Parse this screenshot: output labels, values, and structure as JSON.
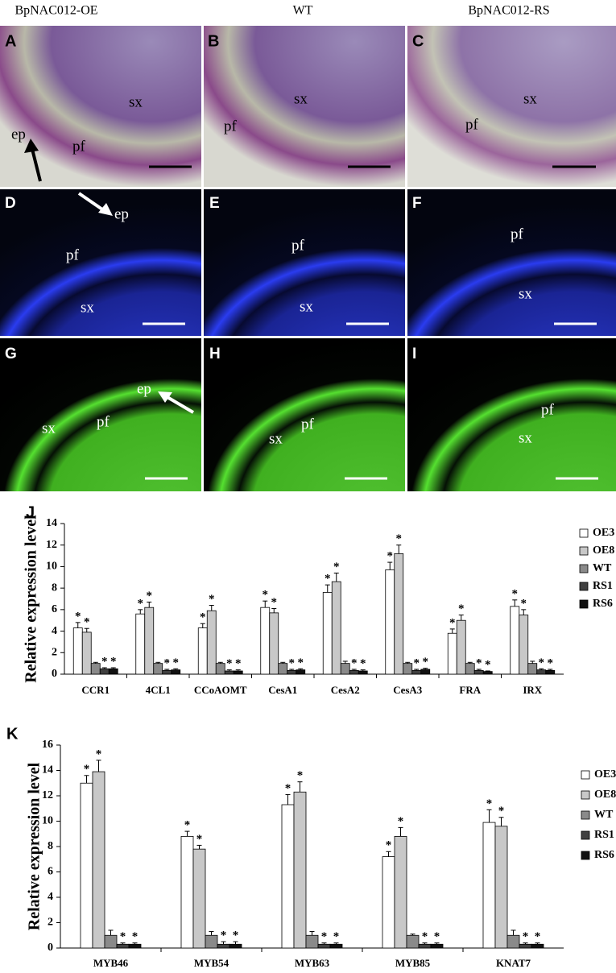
{
  "micrographs": {
    "column_titles": [
      "BpNAC012-OE",
      "WT",
      "BpNAC012-RS"
    ],
    "panels": [
      {
        "letter": "A",
        "labels": [
          "ep",
          "pf",
          "sx"
        ]
      },
      {
        "letter": "B",
        "labels": [
          "sx",
          "pf"
        ]
      },
      {
        "letter": "C",
        "labels": [
          "sx",
          "pf"
        ]
      },
      {
        "letter": "D",
        "labels": [
          "ep",
          "pf",
          "sx"
        ]
      },
      {
        "letter": "E",
        "labels": [
          "pf",
          "sx"
        ]
      },
      {
        "letter": "F",
        "labels": [
          "pf",
          "sx"
        ]
      },
      {
        "letter": "G",
        "labels": [
          "ep",
          "pf",
          "sx"
        ]
      },
      {
        "letter": "H",
        "labels": [
          "pf",
          "sx"
        ]
      },
      {
        "letter": "I",
        "labels": [
          "pf",
          "sx"
        ]
      }
    ]
  },
  "chart_data": [
    {
      "type": "bar",
      "panel": "J",
      "ylabel": "Relative expression level",
      "categories": [
        "CCR1",
        "4CL1",
        "CCoAOMT",
        "CesA1",
        "CesA2",
        "CesA3",
        "FRA",
        "IRX"
      ],
      "series": [
        {
          "name": "OE3",
          "color": "#ffffff",
          "values": [
            4.3,
            5.6,
            4.3,
            6.2,
            7.6,
            9.7,
            3.8,
            6.3
          ],
          "errors": [
            0.5,
            0.4,
            0.4,
            0.6,
            0.7,
            0.7,
            0.4,
            0.6
          ],
          "labels": [
            "*",
            "*",
            "*",
            "*",
            "*",
            "*",
            "*",
            "*"
          ]
        },
        {
          "name": "OE8",
          "color": "#c8c8c8",
          "values": [
            3.9,
            6.2,
            5.9,
            5.7,
            8.6,
            11.2,
            5.0,
            5.5
          ],
          "errors": [
            0.35,
            0.5,
            0.5,
            0.4,
            0.8,
            0.8,
            0.5,
            0.5
          ],
          "labels": [
            "*",
            "*",
            "*",
            "*",
            "*",
            "*",
            "*",
            "*"
          ]
        },
        {
          "name": "WT",
          "color": "#8a8a8a",
          "values": [
            1.0,
            1.0,
            1.0,
            1.0,
            1.0,
            1.0,
            1.0,
            1.0
          ],
          "errors": [
            0.1,
            0.1,
            0.1,
            0.1,
            0.2,
            0.1,
            0.1,
            0.2
          ]
        },
        {
          "name": "RS1",
          "color": "#404040",
          "values": [
            0.5,
            0.35,
            0.3,
            0.35,
            0.35,
            0.35,
            0.35,
            0.4
          ],
          "errors": [
            0.1,
            0.1,
            0.1,
            0.1,
            0.1,
            0.1,
            0.1,
            0.1
          ],
          "labels": [
            "*",
            "*",
            "*",
            "*",
            "*",
            "*",
            "*",
            "*"
          ]
        },
        {
          "name": "RS6",
          "color": "#111111",
          "values": [
            0.5,
            0.4,
            0.3,
            0.4,
            0.3,
            0.45,
            0.25,
            0.35
          ],
          "errors": [
            0.1,
            0.1,
            0.1,
            0.1,
            0.1,
            0.1,
            0.05,
            0.1
          ],
          "labels": [
            "*",
            "*",
            "*",
            "*",
            "*",
            "*",
            "*",
            "*"
          ]
        }
      ],
      "ylim": [
        0,
        14
      ],
      "yticks": [
        0,
        2,
        4,
        6,
        8,
        10,
        12,
        14
      ],
      "legend": "right"
    },
    {
      "type": "bar",
      "panel": "K",
      "ylabel": "Relative expression level",
      "categories": [
        "MYB46",
        "MYB54",
        "MYB63",
        "MYB85",
        "KNAT7"
      ],
      "series": [
        {
          "name": "OE3",
          "color": "#ffffff",
          "values": [
            13.0,
            8.8,
            11.3,
            7.2,
            9.9
          ],
          "errors": [
            0.6,
            0.4,
            0.8,
            0.4,
            1.0
          ],
          "labels": [
            "*",
            "*",
            "*",
            "*",
            "*"
          ]
        },
        {
          "name": "OE8",
          "color": "#c8c8c8",
          "values": [
            13.9,
            7.8,
            12.3,
            8.8,
            9.6
          ],
          "errors": [
            0.9,
            0.3,
            0.8,
            0.7,
            0.7
          ],
          "labels": [
            "*",
            "*",
            "*",
            "*",
            "*"
          ]
        },
        {
          "name": "WT",
          "color": "#8a8a8a",
          "values": [
            1.0,
            1.0,
            1.0,
            1.0,
            1.0
          ],
          "errors": [
            0.4,
            0.3,
            0.3,
            0.1,
            0.4
          ]
        },
        {
          "name": "RS1",
          "color": "#404040",
          "values": [
            0.3,
            0.3,
            0.3,
            0.3,
            0.3
          ],
          "errors": [
            0.1,
            0.2,
            0.1,
            0.1,
            0.1
          ],
          "labels": [
            "*",
            "*",
            "*",
            "*",
            "*"
          ]
        },
        {
          "name": "RS6",
          "color": "#111111",
          "values": [
            0.3,
            0.3,
            0.3,
            0.3,
            0.3
          ],
          "errors": [
            0.1,
            0.2,
            0.1,
            0.1,
            0.1
          ],
          "labels": [
            "*",
            "*",
            "*",
            "*",
            "*"
          ]
        }
      ],
      "ylim": [
        0,
        16
      ],
      "yticks": [
        0,
        2,
        4,
        6,
        8,
        10,
        12,
        14,
        16
      ],
      "legend": "right"
    }
  ]
}
